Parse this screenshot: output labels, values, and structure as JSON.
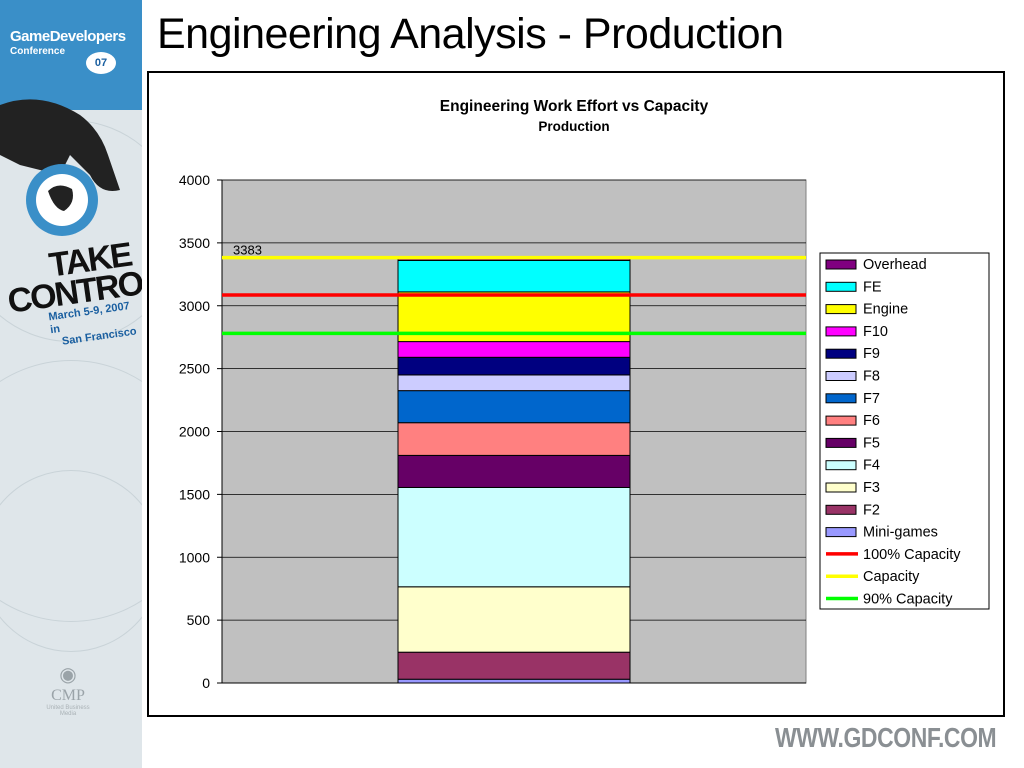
{
  "slide": {
    "title": "Engineering Analysis - Production",
    "footer_url": "WWW.GDCONF.COM"
  },
  "branding": {
    "gdc_line1": "GameDevelopers",
    "gdc_line2": "Conference",
    "gdc_year": "07",
    "tagline_1": "TAKE",
    "tagline_2": "CONTROL",
    "event_line1": "March 5-9, 2007 in",
    "event_line2": "San Francisco",
    "cmp": "CMP",
    "cmp_sub": "United Business Media"
  },
  "chart_data": {
    "type": "bar",
    "stacked": true,
    "title": "Engineering Work Effort vs Capacity",
    "subtitle": "Production",
    "categories": [
      ""
    ],
    "ylim": [
      0,
      4000
    ],
    "yticks": [
      0,
      500,
      1000,
      1500,
      2000,
      2500,
      3000,
      3500,
      4000
    ],
    "grid": true,
    "legend_position": "right",
    "plot_background": "#c0c0c0",
    "series": [
      {
        "name": "Mini-games",
        "values": [
          30
        ],
        "color": "#9999ff"
      },
      {
        "name": "F2",
        "values": [
          215
        ],
        "color": "#993366"
      },
      {
        "name": "F3",
        "values": [
          520
        ],
        "color": "#ffffcc"
      },
      {
        "name": "F4",
        "values": [
          790
        ],
        "color": "#ccffff"
      },
      {
        "name": "F5",
        "values": [
          255
        ],
        "color": "#660066"
      },
      {
        "name": "F6",
        "values": [
          260
        ],
        "color": "#ff8080"
      },
      {
        "name": "F7",
        "values": [
          255
        ],
        "color": "#0066cc"
      },
      {
        "name": "F8",
        "values": [
          125
        ],
        "color": "#ccccff"
      },
      {
        "name": "F9",
        "values": [
          140
        ],
        "color": "#000080"
      },
      {
        "name": "F10",
        "values": [
          125
        ],
        "color": "#ff00ff"
      },
      {
        "name": "Engine",
        "values": [
          395
        ],
        "color": "#ffff00"
      },
      {
        "name": "FE",
        "values": [
          250
        ],
        "color": "#00ffff"
      },
      {
        "name": "Overhead",
        "values": [
          20
        ],
        "color": "#800080"
      }
    ],
    "lines": [
      {
        "name": "100% Capacity",
        "value": 3085,
        "color": "#ff0000"
      },
      {
        "name": "Capacity",
        "value": 3383,
        "color": "#ffff00"
      },
      {
        "name": "90% Capacity",
        "value": 2780,
        "color": "#00ff00"
      }
    ],
    "annotation": "3383",
    "legend_order": [
      "Overhead",
      "FE",
      "Engine",
      "F10",
      "F9",
      "F8",
      "F7",
      "F6",
      "F5",
      "F4",
      "F3",
      "F2",
      "Mini-games",
      "100% Capacity",
      "Capacity",
      "90% Capacity"
    ]
  }
}
